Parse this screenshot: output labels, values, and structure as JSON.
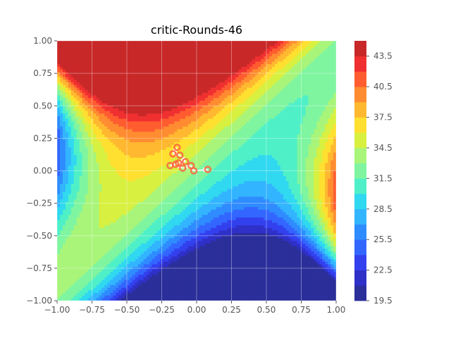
{
  "chart_data": {
    "type": "contour",
    "title": "critic-Rounds-46",
    "xlabel": "",
    "ylabel": "",
    "xlim": [
      -1.0,
      1.0
    ],
    "ylim": [
      -1.0,
      1.0
    ],
    "x_ticks": [
      "−1.00",
      "−0.75",
      "−0.50",
      "−0.25",
      "0.00",
      "0.25",
      "0.50",
      "0.75",
      "1.00"
    ],
    "y_ticks": [
      "−1.00",
      "−0.75",
      "−0.50",
      "−0.25",
      "0.00",
      "0.25",
      "0.50",
      "0.75",
      "1.00"
    ],
    "x_tick_values": [
      -1.0,
      -0.75,
      -0.5,
      -0.25,
      0.0,
      0.25,
      0.5,
      0.75,
      1.0
    ],
    "y_tick_values": [
      -1.0,
      -0.75,
      -0.5,
      -0.25,
      0.0,
      0.25,
      0.5,
      0.75,
      1.0
    ],
    "grid": true,
    "colormap": "jet",
    "colorbar": {
      "range": [
        19.5,
        45.0
      ],
      "tick_labels": [
        "19.5",
        "22.5",
        "25.5",
        "28.5",
        "31.5",
        "34.5",
        "37.5",
        "40.5",
        "43.5"
      ],
      "tick_values": [
        19.5,
        22.5,
        25.5,
        28.5,
        31.5,
        34.5,
        37.5,
        40.5,
        43.5
      ],
      "level_step": 1.5,
      "level_colors": [
        "#2b2f9a",
        "#2f30c8",
        "#3340ee",
        "#3366ff",
        "#2f8cff",
        "#33b4ff",
        "#30d8f0",
        "#4ff0c8",
        "#7ff5a0",
        "#a8f57a",
        "#d8f040",
        "#ffe030",
        "#ffb830",
        "#ff8c30",
        "#ff5c30",
        "#f03030",
        "#c82828"
      ]
    },
    "field_model": "value = 32.85 + 12.35*(y - x) + 20.5*(x - y)^2*(x + y), approximating the critic value surface shown",
    "trajectory": {
      "color": "#ff6040",
      "points": [
        [
          -0.14,
          0.18
        ],
        [
          -0.17,
          0.13
        ],
        [
          -0.12,
          0.12
        ],
        [
          -0.08,
          0.07
        ],
        [
          -0.13,
          0.06
        ],
        [
          -0.19,
          0.04
        ],
        [
          -0.15,
          0.05
        ],
        [
          -0.1,
          0.02
        ],
        [
          -0.04,
          0.04
        ],
        [
          -0.02,
          0.0
        ],
        [
          0.08,
          0.01
        ]
      ]
    }
  }
}
